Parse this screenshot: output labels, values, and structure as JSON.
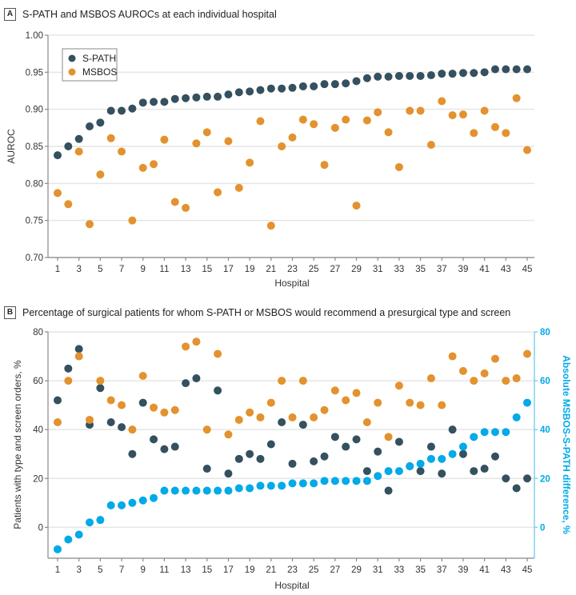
{
  "colors": {
    "spath": "#35505f",
    "msbos": "#e3922e",
    "diff": "#00aae8",
    "diff_axis": "#7fd0ef"
  },
  "chart_data": [
    {
      "type": "scatter",
      "panel": "A",
      "title": "S-PATH and MSBOS AUROCs at each individual hospital",
      "xlabel": "Hospital",
      "ylabel": "AUROC",
      "xlim": [
        1,
        45
      ],
      "ylim": [
        0.7,
        1.0
      ],
      "grid": true,
      "legend_position": "top-left",
      "xticks": [
        "1",
        "3",
        "5",
        "7",
        "9",
        "11",
        "13",
        "15",
        "17",
        "19",
        "21",
        "23",
        "25",
        "27",
        "29",
        "31",
        "33",
        "35",
        "37",
        "39",
        "41",
        "43",
        "45"
      ],
      "yticks": [
        "0.70",
        "0.75",
        "0.80",
        "0.85",
        "0.90",
        "0.95",
        "1.00"
      ],
      "x": [
        1,
        2,
        3,
        4,
        5,
        6,
        7,
        8,
        9,
        10,
        11,
        12,
        13,
        14,
        15,
        16,
        17,
        18,
        19,
        20,
        21,
        22,
        23,
        24,
        25,
        26,
        27,
        28,
        29,
        30,
        31,
        32,
        33,
        34,
        35,
        36,
        37,
        38,
        39,
        40,
        41,
        42,
        43,
        44,
        45
      ],
      "series": [
        {
          "name": "S-PATH",
          "color_key": "spath",
          "values": [
            0.838,
            0.85,
            0.86,
            0.877,
            0.882,
            0.898,
            0.898,
            0.901,
            0.909,
            0.91,
            0.91,
            0.914,
            0.915,
            0.916,
            0.917,
            0.917,
            0.92,
            0.923,
            0.924,
            0.926,
            0.928,
            0.928,
            0.929,
            0.931,
            0.931,
            0.934,
            0.934,
            0.935,
            0.938,
            0.942,
            0.944,
            0.944,
            0.945,
            0.945,
            0.945,
            0.946,
            0.948,
            0.948,
            0.949,
            0.949,
            0.95,
            0.954,
            0.954,
            0.954,
            0.954
          ]
        },
        {
          "name": "MSBOS",
          "color_key": "msbos",
          "values": [
            0.787,
            0.772,
            0.843,
            0.745,
            0.812,
            0.861,
            0.843,
            0.75,
            0.821,
            0.826,
            0.859,
            0.775,
            0.767,
            0.854,
            0.869,
            0.788,
            0.857,
            0.794,
            0.828,
            0.884,
            0.743,
            0.85,
            0.862,
            0.886,
            0.88,
            0.825,
            0.875,
            0.886,
            0.77,
            0.885,
            0.896,
            0.869,
            0.822,
            0.898,
            0.898,
            0.852,
            0.911,
            0.892,
            0.893,
            0.868,
            0.898,
            0.876,
            0.868,
            0.915,
            0.845
          ]
        }
      ]
    },
    {
      "type": "scatter",
      "panel": "B",
      "title": "Percentage of surgical patients for whom S-PATH or MSBOS would recommend a presurgical type and screen",
      "xlabel": "Hospital",
      "ylabel": "Patients with type and screen orders, %",
      "y2label": "Absolute MSBOS-S-PATH difference, %",
      "xlim": [
        1,
        45
      ],
      "ylim": [
        -12,
        80
      ],
      "y2lim": [
        -12,
        80
      ],
      "grid": true,
      "xticks": [
        "1",
        "3",
        "5",
        "7",
        "9",
        "11",
        "13",
        "15",
        "17",
        "19",
        "21",
        "23",
        "25",
        "27",
        "29",
        "31",
        "33",
        "35",
        "37",
        "39",
        "41",
        "43",
        "45"
      ],
      "yticks": [
        "0",
        "20",
        "40",
        "60",
        "80"
      ],
      "y2ticks": [
        "0",
        "20",
        "40",
        "60",
        "80"
      ],
      "x": [
        1,
        2,
        3,
        4,
        5,
        6,
        7,
        8,
        9,
        10,
        11,
        12,
        13,
        14,
        15,
        16,
        17,
        18,
        19,
        20,
        21,
        22,
        23,
        24,
        25,
        26,
        27,
        28,
        29,
        30,
        31,
        32,
        33,
        34,
        35,
        36,
        37,
        38,
        39,
        40,
        41,
        42,
        43,
        44,
        45
      ],
      "series": [
        {
          "name": "S-PATH",
          "color_key": "spath",
          "axis": "left",
          "values": [
            52,
            65,
            73,
            42,
            57,
            43,
            41,
            30,
            51,
            36,
            32,
            33,
            59,
            61,
            24,
            56,
            22,
            28,
            30,
            28,
            34,
            43,
            26,
            42,
            27,
            29,
            37,
            33,
            36,
            23,
            31,
            15,
            35,
            25,
            23,
            33,
            22,
            40,
            30,
            23,
            24,
            29,
            20,
            16,
            20
          ]
        },
        {
          "name": "MSBOS",
          "color_key": "msbos",
          "axis": "left",
          "values": [
            43,
            60,
            70,
            44,
            60,
            52,
            50,
            40,
            62,
            49,
            47,
            48,
            74,
            76,
            40,
            71,
            38,
            44,
            47,
            45,
            51,
            60,
            45,
            60,
            45,
            48,
            56,
            52,
            55,
            43,
            51,
            37,
            58,
            51,
            50,
            61,
            50,
            70,
            64,
            60,
            63,
            69,
            60,
            61,
            71
          ]
        },
        {
          "name": "Absolute MSBOS-S-PATH difference",
          "color_key": "diff",
          "axis": "right",
          "values": [
            -9,
            -5,
            -3,
            2,
            3,
            9,
            9,
            10,
            11,
            12,
            15,
            15,
            15,
            15,
            15,
            15,
            15,
            16,
            16,
            17,
            17,
            17,
            18,
            18,
            18,
            19,
            19,
            19,
            19,
            19,
            21,
            23,
            23,
            25,
            26,
            28,
            28,
            30,
            33,
            37,
            39,
            39,
            39,
            45,
            51
          ]
        }
      ]
    }
  ]
}
